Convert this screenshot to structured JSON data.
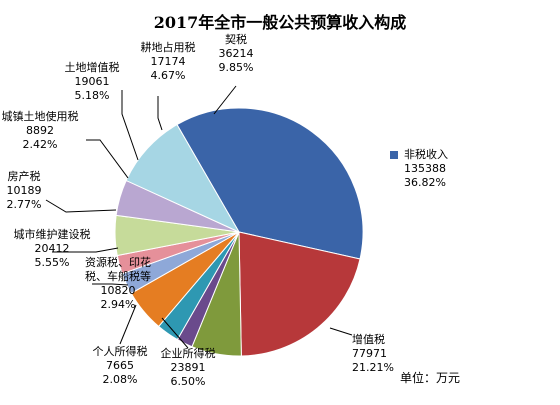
{
  "chart_data": {
    "type": "pie",
    "title": "2017年全市一般公共预算收入构成",
    "unit_note": "单位：万元",
    "slices": [
      {
        "name": "非税收入",
        "value": 135388,
        "percent": "36.82%",
        "color": "#3A64A8"
      },
      {
        "name": "增值税",
        "value": 77971,
        "percent": "21.21%",
        "color": "#B7383A"
      },
      {
        "name": "企业所得税",
        "value": 23891,
        "percent": "6.50%",
        "color": "#7F9A3C"
      },
      {
        "name": "个人所得税",
        "value": 7665,
        "percent": "2.08%",
        "color": "#6A4A8C"
      },
      {
        "name": "资源税、印花税、车船税等",
        "value": 10820,
        "percent": "2.94%",
        "color": "#2E98B2"
      },
      {
        "name": "城市维护建设税",
        "value": 20412,
        "percent": "5.55%",
        "color": "#E57D22"
      },
      {
        "name": "房产税",
        "value": 10189,
        "percent": "2.77%",
        "color": "#8EA8D8"
      },
      {
        "name": "城镇土地使用税",
        "value": 8892,
        "percent": "2.42%",
        "color": "#E5909A"
      },
      {
        "name": "土地增值税",
        "value": 19061,
        "percent": "5.18%",
        "color": "#C6DB9A"
      },
      {
        "name": "耕地占用税",
        "value": 17174,
        "percent": "4.67%",
        "color": "#B9A7D1"
      },
      {
        "name": "契税",
        "value": 36214,
        "percent": "9.85%",
        "color": "#A6D6E4"
      }
    ],
    "legend": {
      "position": "right",
      "entries": [
        "非税收入"
      ]
    }
  }
}
